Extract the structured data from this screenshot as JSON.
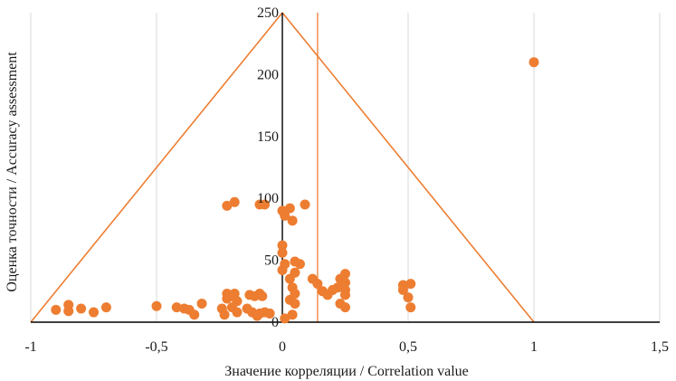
{
  "chart_data": {
    "type": "scatter",
    "title": "",
    "xlabel": "Значение корреляции / Correlation value",
    "ylabel": "Оценка точности / Accuracy assessment",
    "xlim": [
      -1,
      1.5
    ],
    "ylim": [
      0,
      250
    ],
    "x_ticks": [
      "-1",
      "-0,5",
      "0",
      "0,5",
      "1",
      "1,5"
    ],
    "y_ticks": [
      "0",
      "50",
      "100",
      "150",
      "200",
      "250"
    ],
    "x_tick_values": [
      -1,
      -0.5,
      0,
      0.5,
      1,
      1.5
    ],
    "y_tick_values": [
      0,
      50,
      100,
      150,
      200,
      250
    ],
    "grid": "vertical",
    "colors": {
      "marker": "#ed7d31",
      "funnel": "#ed7d31",
      "axis": "#000000",
      "grid": "#d9d9d9"
    },
    "funnel": {
      "apex": [
        0,
        250
      ],
      "base_left": [
        -1,
        0
      ],
      "base_right": [
        1,
        0
      ]
    },
    "reference_line_x": 0.14,
    "points": [
      {
        "x": 1.0,
        "y": 210
      },
      {
        "x": -0.22,
        "y": 94
      },
      {
        "x": -0.19,
        "y": 97
      },
      {
        "x": -0.09,
        "y": 95
      },
      {
        "x": -0.07,
        "y": 95
      },
      {
        "x": 0.0,
        "y": 90
      },
      {
        "x": 0.03,
        "y": 92
      },
      {
        "x": 0.09,
        "y": 95
      },
      {
        "x": 0.01,
        "y": 86
      },
      {
        "x": 0.04,
        "y": 82
      },
      {
        "x": 0.0,
        "y": 62
      },
      {
        "x": 0.0,
        "y": 56
      },
      {
        "x": 0.01,
        "y": 47
      },
      {
        "x": 0.0,
        "y": 42
      },
      {
        "x": 0.05,
        "y": 49
      },
      {
        "x": 0.07,
        "y": 47
      },
      {
        "x": 0.05,
        "y": 40
      },
      {
        "x": 0.03,
        "y": 35
      },
      {
        "x": 0.04,
        "y": 28
      },
      {
        "x": 0.05,
        "y": 23
      },
      {
        "x": 0.03,
        "y": 18
      },
      {
        "x": 0.05,
        "y": 15
      },
      {
        "x": 0.04,
        "y": 6
      },
      {
        "x": 0.01,
        "y": 3
      },
      {
        "x": 0.12,
        "y": 35
      },
      {
        "x": 0.14,
        "y": 31
      },
      {
        "x": 0.16,
        "y": 25
      },
      {
        "x": 0.18,
        "y": 22
      },
      {
        "x": 0.2,
        "y": 26
      },
      {
        "x": 0.22,
        "y": 28
      },
      {
        "x": 0.23,
        "y": 35
      },
      {
        "x": 0.25,
        "y": 39
      },
      {
        "x": 0.25,
        "y": 32
      },
      {
        "x": 0.25,
        "y": 26
      },
      {
        "x": 0.25,
        "y": 22
      },
      {
        "x": 0.23,
        "y": 15
      },
      {
        "x": 0.25,
        "y": 12
      },
      {
        "x": 0.48,
        "y": 30
      },
      {
        "x": 0.48,
        "y": 26
      },
      {
        "x": 0.51,
        "y": 31
      },
      {
        "x": 0.5,
        "y": 20
      },
      {
        "x": 0.51,
        "y": 12
      },
      {
        "x": -0.9,
        "y": 10
      },
      {
        "x": -0.85,
        "y": 14
      },
      {
        "x": -0.85,
        "y": 9
      },
      {
        "x": -0.8,
        "y": 11
      },
      {
        "x": -0.75,
        "y": 8
      },
      {
        "x": -0.7,
        "y": 12
      },
      {
        "x": -0.5,
        "y": 13
      },
      {
        "x": -0.42,
        "y": 12
      },
      {
        "x": -0.39,
        "y": 11
      },
      {
        "x": -0.37,
        "y": 10
      },
      {
        "x": -0.35,
        "y": 6
      },
      {
        "x": -0.32,
        "y": 15
      },
      {
        "x": -0.24,
        "y": 11
      },
      {
        "x": -0.23,
        "y": 6
      },
      {
        "x": -0.22,
        "y": 23
      },
      {
        "x": -0.22,
        "y": 19
      },
      {
        "x": -0.2,
        "y": 21
      },
      {
        "x": -0.19,
        "y": 23
      },
      {
        "x": -0.18,
        "y": 17
      },
      {
        "x": -0.2,
        "y": 12
      },
      {
        "x": -0.18,
        "y": 8
      },
      {
        "x": -0.14,
        "y": 11
      },
      {
        "x": -0.13,
        "y": 22
      },
      {
        "x": -0.11,
        "y": 21
      },
      {
        "x": -0.09,
        "y": 23
      },
      {
        "x": -0.08,
        "y": 21
      },
      {
        "x": -0.12,
        "y": 8
      },
      {
        "x": -0.09,
        "y": 7
      },
      {
        "x": -0.07,
        "y": 8
      },
      {
        "x": -0.05,
        "y": 7
      },
      {
        "x": -0.1,
        "y": 5
      }
    ]
  }
}
